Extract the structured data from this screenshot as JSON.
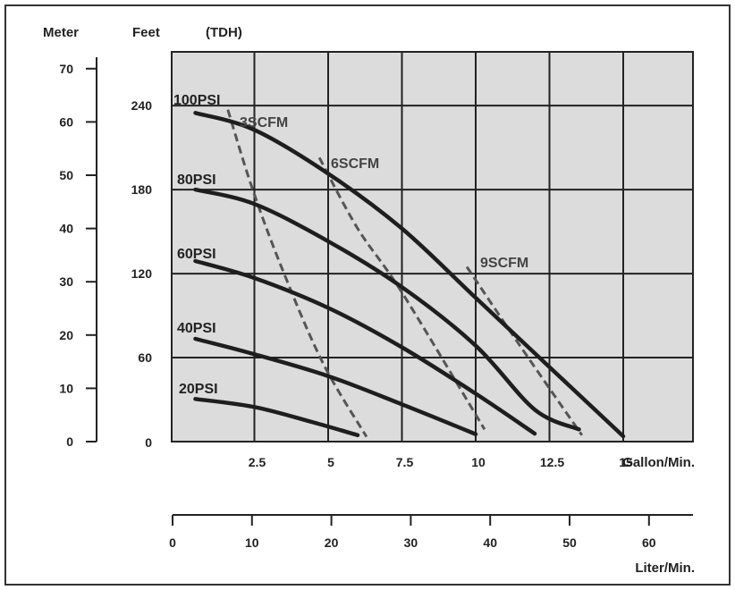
{
  "chart_data": {
    "type": "line",
    "title": "",
    "axes": {
      "left_meter": {
        "label": "Meter",
        "ticks": [
          0,
          10,
          20,
          30,
          40,
          50,
          60,
          70
        ],
        "ylim": [
          0,
          70
        ]
      },
      "left_feet": {
        "label": "Feet",
        "ticks": [
          0,
          60,
          120,
          180,
          240
        ]
      },
      "tdh_label": "(TDH)",
      "x_gallon": {
        "label": "Gallon/Min.",
        "ticks": [
          "2.5",
          "5",
          "7.5",
          "10",
          "12.5",
          "15"
        ],
        "xlim": [
          0,
          17.5
        ]
      },
      "x_liter": {
        "label": "Liter/Min.",
        "ticks": [
          "0",
          "10",
          "20",
          "30",
          "40",
          "50",
          "60"
        ]
      }
    },
    "grid": true,
    "series_psi": [
      {
        "name": "100PSI",
        "points": [
          [
            0.5,
            61.7
          ],
          [
            2.5,
            58.5
          ],
          [
            5.0,
            50.3
          ],
          [
            7.5,
            40.0
          ],
          [
            10.0,
            27.0
          ],
          [
            12.5,
            14.0
          ],
          [
            15.0,
            1.0
          ]
        ]
      },
      {
        "name": "80PSI",
        "points": [
          [
            0.5,
            47.3
          ],
          [
            2.5,
            44.6
          ],
          [
            5.0,
            37.6
          ],
          [
            7.5,
            29.0
          ],
          [
            10.0,
            18.0
          ],
          [
            12.0,
            6.0
          ],
          [
            13.5,
            2.3
          ]
        ]
      },
      {
        "name": "60PSI",
        "points": [
          [
            0.5,
            33.9
          ],
          [
            2.5,
            30.7
          ],
          [
            5.0,
            25.1
          ],
          [
            7.5,
            17.7
          ],
          [
            10.0,
            9.0
          ],
          [
            12.0,
            1.5
          ]
        ]
      },
      {
        "name": "40PSI",
        "points": [
          [
            0.5,
            19.3
          ],
          [
            2.5,
            16.4
          ],
          [
            5.0,
            12.3
          ],
          [
            7.5,
            7.0
          ],
          [
            10.0,
            1.4
          ]
        ]
      },
      {
        "name": "20PSI",
        "points": [
          [
            0.5,
            8.0
          ],
          [
            2.5,
            6.5
          ],
          [
            4.5,
            3.6
          ],
          [
            6.0,
            1.2
          ]
        ]
      }
    ],
    "series_scfm": [
      {
        "name": "3SCFM",
        "points": [
          [
            1.6,
            62.3
          ],
          [
            2.4,
            48.0
          ],
          [
            3.4,
            33.0
          ],
          [
            4.8,
            15.0
          ],
          [
            6.3,
            0.9
          ]
        ]
      },
      {
        "name": "6SCFM",
        "points": [
          [
            4.7,
            53.3
          ],
          [
            6.0,
            40.0
          ],
          [
            7.5,
            28.0
          ],
          [
            10.3,
            2.3
          ]
        ]
      },
      {
        "name": "9SCFM",
        "points": [
          [
            9.7,
            32.8
          ],
          [
            11.5,
            18.0
          ],
          [
            13.6,
            1.2
          ]
        ]
      }
    ]
  }
}
